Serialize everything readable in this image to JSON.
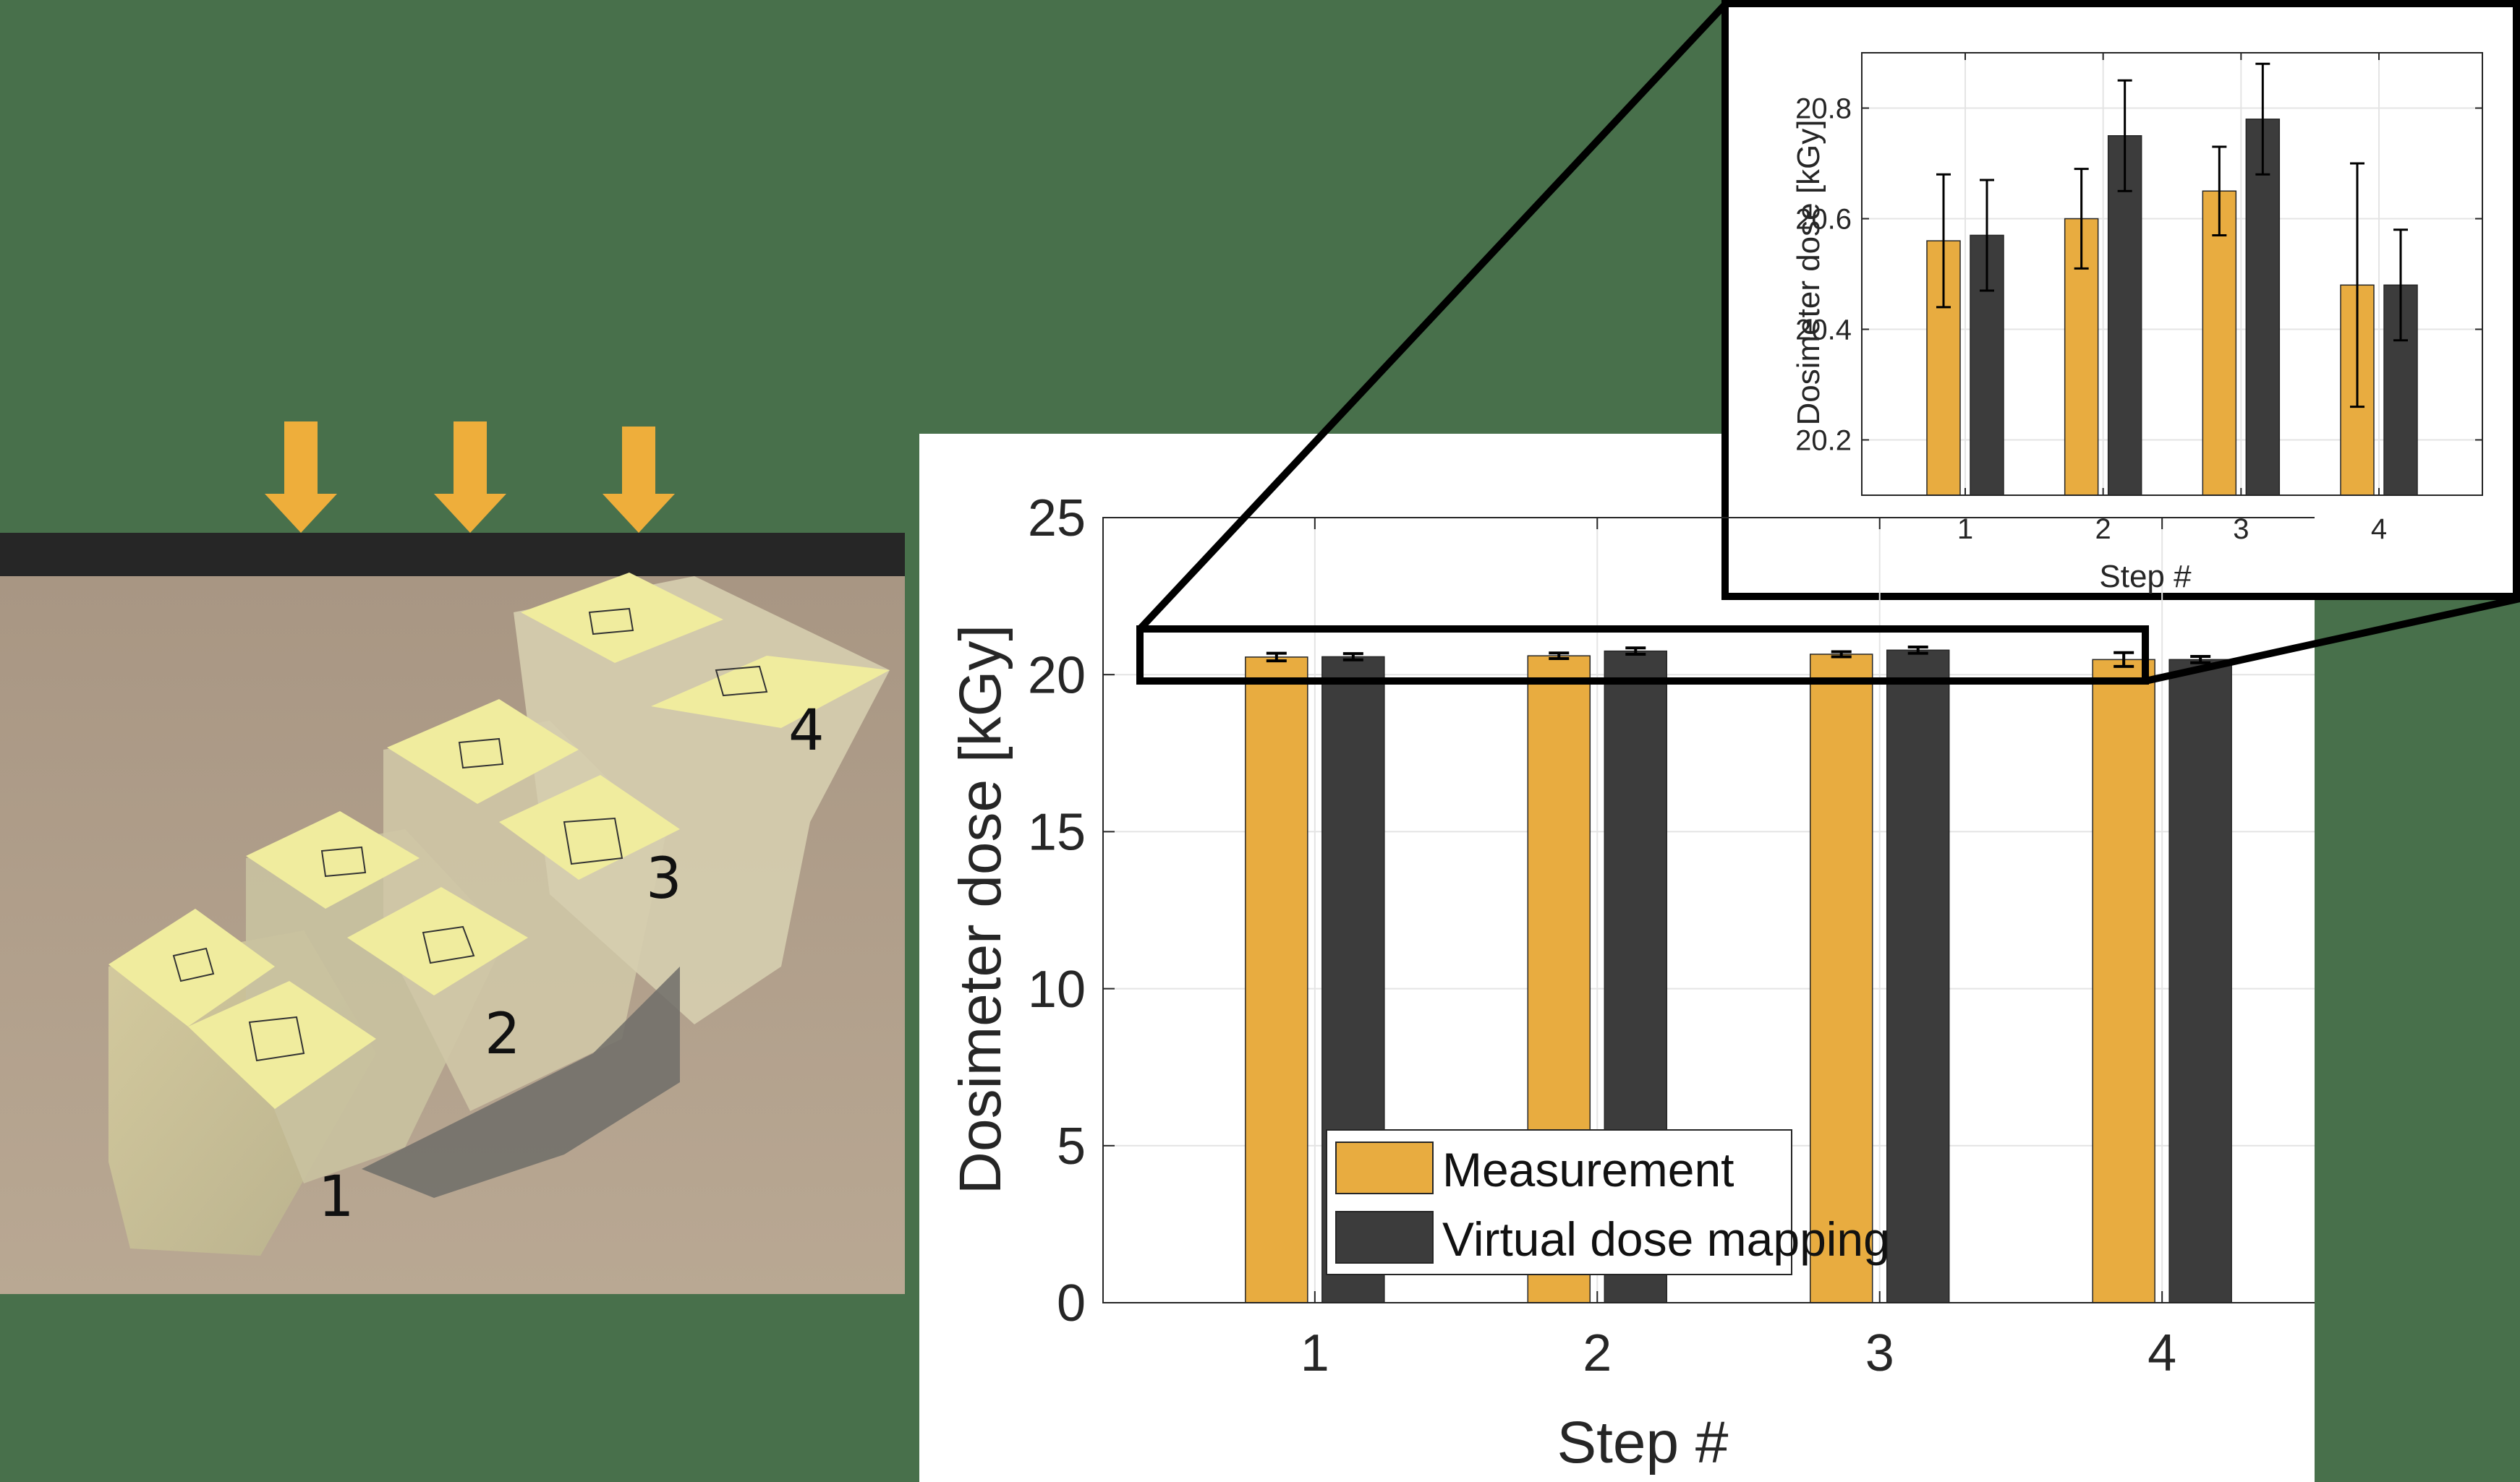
{
  "photo": {
    "step_labels": [
      "1",
      "2",
      "3",
      "4"
    ],
    "arrow_color": "#eeae3b"
  },
  "colors": {
    "measurement": "#e8ac40",
    "virtual": "#3c3c3c",
    "background": "#48704b"
  },
  "chart_data": [
    {
      "type": "bar",
      "categories": [
        "1",
        "2",
        "3",
        "4"
      ],
      "series": [
        {
          "name": "Measurement",
          "values": [
            20.56,
            20.6,
            20.65,
            20.48
          ],
          "errors": [
            0.12,
            0.09,
            0.08,
            0.22
          ]
        },
        {
          "name": "Virtual dose mapping",
          "values": [
            20.57,
            20.75,
            20.78,
            20.48
          ],
          "errors": [
            0.1,
            0.1,
            0.1,
            0.1
          ]
        }
      ],
      "xlabel": "Step #",
      "ylabel": "Dosimeter dose [kGy]",
      "ylim": [
        0,
        25
      ],
      "yticks": [
        "0",
        "5",
        "10",
        "15",
        "20",
        "25"
      ],
      "grid": true,
      "legend": "bottom-center"
    },
    {
      "type": "bar",
      "categories": [
        "1",
        "2",
        "3",
        "4"
      ],
      "series": [
        {
          "name": "Measurement",
          "values": [
            20.56,
            20.6,
            20.65,
            20.48
          ],
          "errors": [
            0.12,
            0.09,
            0.08,
            0.22
          ]
        },
        {
          "name": "Virtual dose mapping",
          "values": [
            20.57,
            20.75,
            20.78,
            20.48
          ],
          "errors": [
            0.1,
            0.1,
            0.1,
            0.1
          ]
        }
      ],
      "xlabel": "Step #",
      "ylabel": "Dosimeter dose [kGy]",
      "ylim": [
        20.1,
        20.9
      ],
      "yticks": [
        "20.2",
        "20.4",
        "20.6",
        "20.8"
      ],
      "grid": true
    }
  ]
}
